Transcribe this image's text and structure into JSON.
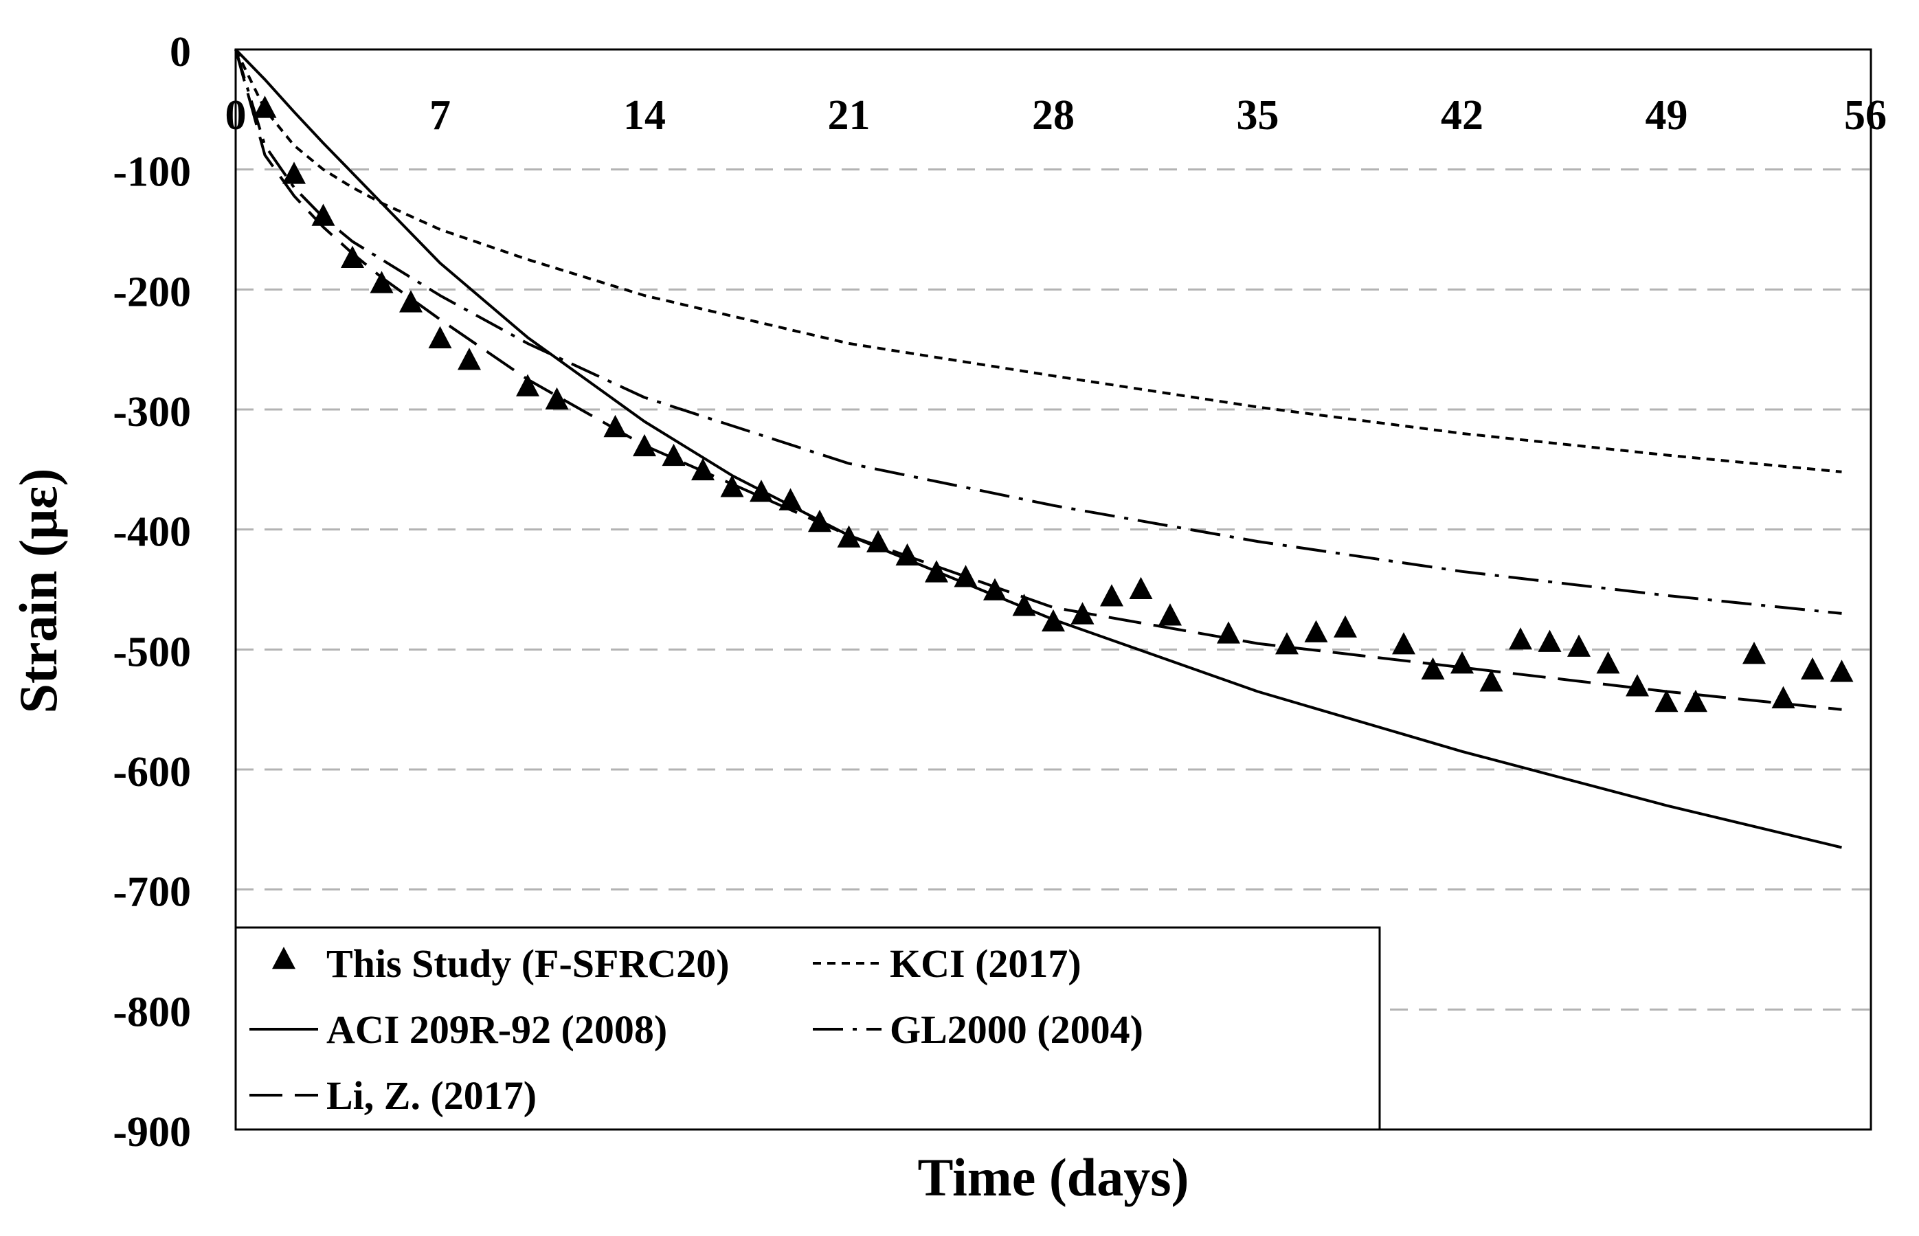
{
  "chart_data": {
    "type": "line",
    "title": "",
    "xlabel": "Time (days)",
    "ylabel": "Strain (με)",
    "xlim": [
      0,
      56
    ],
    "ylim": [
      -900,
      0
    ],
    "x_ticks": [
      0,
      7,
      14,
      21,
      28,
      35,
      42,
      49,
      56
    ],
    "x_tick_labels": [
      "0",
      "7",
      "14",
      "21",
      "28",
      "35",
      "42",
      "49",
      "56"
    ],
    "y_ticks": [
      0,
      -100,
      -200,
      -300,
      -400,
      -500,
      -600,
      -700,
      -800,
      -900
    ],
    "y_tick_labels": [
      "0",
      "-100",
      "-200",
      "-300",
      "-400",
      "-500",
      "-600",
      "-700",
      "-800",
      "-900"
    ],
    "gridlines": "horizontal dashed",
    "legend_position": "bottom-left",
    "series": [
      {
        "name": "This Study (F-SFRC20)",
        "style": "triangle-markers",
        "points": [
          [
            1,
            -50
          ],
          [
            2,
            -105
          ],
          [
            3,
            -140
          ],
          [
            4,
            -175
          ],
          [
            5,
            -196
          ],
          [
            6,
            -212
          ],
          [
            7,
            -242
          ],
          [
            8,
            -260
          ],
          [
            10,
            -282
          ],
          [
            11,
            -293
          ],
          [
            13,
            -316
          ],
          [
            14,
            -332
          ],
          [
            15,
            -340
          ],
          [
            16,
            -352
          ],
          [
            17,
            -366
          ],
          [
            18,
            -370
          ],
          [
            19,
            -377
          ],
          [
            20,
            -395
          ],
          [
            21,
            -408
          ],
          [
            22,
            -412
          ],
          [
            23,
            -423
          ],
          [
            24,
            -437
          ],
          [
            25,
            -441
          ],
          [
            26,
            -452
          ],
          [
            27,
            -465
          ],
          [
            28,
            -478
          ],
          [
            29,
            -472
          ],
          [
            30,
            -457
          ],
          [
            31,
            -451
          ],
          [
            32,
            -473
          ],
          [
            34,
            -488
          ],
          [
            36,
            -497
          ],
          [
            37,
            -487
          ],
          [
            38,
            -483
          ],
          [
            40,
            -497
          ],
          [
            41,
            -518
          ],
          [
            42,
            -513
          ],
          [
            43,
            -528
          ],
          [
            44,
            -493
          ],
          [
            45,
            -495
          ],
          [
            46,
            -499
          ],
          [
            47,
            -513
          ],
          [
            48,
            -532
          ],
          [
            49,
            -545
          ],
          [
            50,
            -545
          ],
          [
            52,
            -505
          ],
          [
            53,
            -542
          ],
          [
            54,
            -518
          ],
          [
            55,
            -520
          ]
        ]
      },
      {
        "name": "KCI (2017)",
        "style": "short-dash",
        "points": [
          [
            0,
            0
          ],
          [
            1,
            -50
          ],
          [
            2,
            -80
          ],
          [
            3,
            -100
          ],
          [
            4,
            -115
          ],
          [
            5,
            -128
          ],
          [
            7,
            -150
          ],
          [
            10,
            -175
          ],
          [
            14,
            -205
          ],
          [
            21,
            -245
          ],
          [
            28,
            -272
          ],
          [
            35,
            -298
          ],
          [
            42,
            -320
          ],
          [
            49,
            -338
          ],
          [
            55,
            -352
          ]
        ]
      },
      {
        "name": "ACI 209R-92 (2008)",
        "style": "solid",
        "points": [
          [
            0,
            0
          ],
          [
            1,
            -25
          ],
          [
            2,
            -52
          ],
          [
            3,
            -78
          ],
          [
            5,
            -128
          ],
          [
            7,
            -178
          ],
          [
            10,
            -240
          ],
          [
            14,
            -310
          ],
          [
            17,
            -355
          ],
          [
            21,
            -405
          ],
          [
            28,
            -475
          ],
          [
            35,
            -535
          ],
          [
            42,
            -585
          ],
          [
            49,
            -630
          ],
          [
            55,
            -665
          ]
        ]
      },
      {
        "name": "GL2000 (2004)",
        "style": "dash-dot",
        "points": [
          [
            0,
            0
          ],
          [
            1,
            -80
          ],
          [
            2,
            -115
          ],
          [
            3,
            -140
          ],
          [
            4,
            -160
          ],
          [
            5,
            -175
          ],
          [
            7,
            -205
          ],
          [
            10,
            -245
          ],
          [
            14,
            -290
          ],
          [
            21,
            -345
          ],
          [
            28,
            -380
          ],
          [
            35,
            -410
          ],
          [
            42,
            -435
          ],
          [
            49,
            -455
          ],
          [
            55,
            -470
          ]
        ]
      },
      {
        "name": "Li, Z. (2017)",
        "style": "long-dash",
        "points": [
          [
            0,
            0
          ],
          [
            1,
            -88
          ],
          [
            2,
            -122
          ],
          [
            3,
            -148
          ],
          [
            4,
            -170
          ],
          [
            5,
            -190
          ],
          [
            7,
            -225
          ],
          [
            10,
            -275
          ],
          [
            14,
            -330
          ],
          [
            21,
            -405
          ],
          [
            28,
            -465
          ],
          [
            35,
            -495
          ],
          [
            42,
            -515
          ],
          [
            49,
            -535
          ],
          [
            55,
            -550
          ]
        ]
      }
    ],
    "legend_rows": [
      [
        "This Study (F-SFRC20)",
        "KCI (2017)"
      ],
      [
        "ACI 209R-92 (2008)",
        "GL2000 (2004)"
      ],
      [
        "Li, Z. (2017)"
      ]
    ]
  }
}
